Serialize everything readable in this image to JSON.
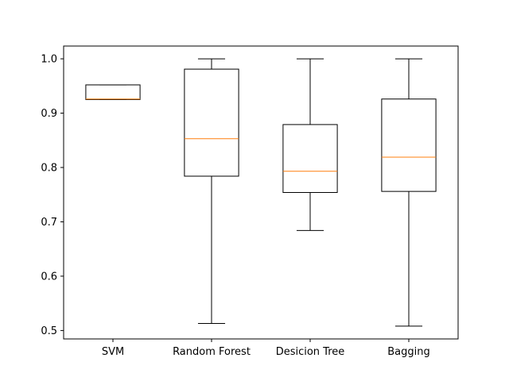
{
  "chart_data": {
    "type": "boxplot",
    "title": "",
    "xlabel": "",
    "ylabel": "",
    "ylim": [
      0.4845,
      1.0235
    ],
    "yticks": [
      0.5,
      0.6,
      0.7,
      0.8,
      0.9,
      1.0
    ],
    "ytick_labels": [
      "0.5",
      "0.6",
      "0.7",
      "0.8",
      "0.9",
      "1.0"
    ],
    "grid": false,
    "categories": [
      "SVM",
      "Random Forest",
      "Desicion Tree",
      "Bagging"
    ],
    "boxes": [
      {
        "whislo": 0.925,
        "q1": 0.925,
        "med": 0.926,
        "q3": 0.952,
        "whishi": 0.952
      },
      {
        "whislo": 0.513,
        "q1": 0.784,
        "med": 0.853,
        "q3": 0.981,
        "whishi": 1.0
      },
      {
        "whislo": 0.684,
        "q1": 0.754,
        "med": 0.793,
        "q3": 0.879,
        "whishi": 1.0
      },
      {
        "whislo": 0.508,
        "q1": 0.756,
        "med": 0.819,
        "q3": 0.926,
        "whishi": 1.0
      }
    ],
    "colors": {
      "box": "#000000",
      "median": "#ff7f0e",
      "axes": "#000000"
    }
  }
}
